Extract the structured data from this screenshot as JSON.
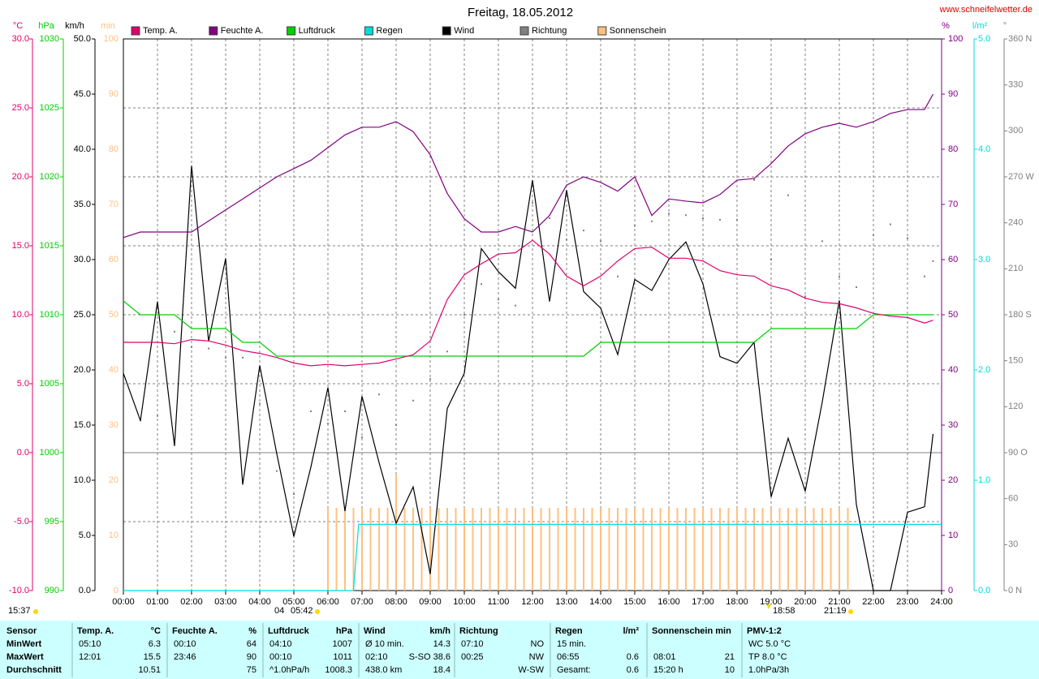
{
  "chart_data": {
    "type": "line",
    "title": "Freitag, 18.05.2012",
    "subtitle": "www.schneifelwetter.de",
    "grid": true,
    "annotations": [
      "15:37",
      "04",
      "05:42",
      "18:58",
      "21:19"
    ],
    "x": [
      0,
      0.5,
      1,
      1.5,
      2,
      2.5,
      3,
      3.5,
      4,
      4.5,
      5,
      5.5,
      6,
      6.5,
      7,
      7.5,
      8,
      8.5,
      9,
      9.5,
      10,
      10.5,
      11,
      11.5,
      12,
      12.5,
      13,
      13.5,
      14,
      14.5,
      15,
      15.5,
      16,
      16.5,
      17,
      17.5,
      18,
      18.5,
      19,
      19.5,
      20,
      20.5,
      21,
      21.5,
      22,
      22.5,
      23,
      23.5,
      23.75
    ],
    "xlim": [
      0,
      24
    ],
    "xticks": [
      {
        "value": 0,
        "label": "00:00"
      },
      {
        "value": 1,
        "label": "01:00"
      },
      {
        "value": 2,
        "label": "02:00"
      },
      {
        "value": 3,
        "label": "03:00"
      },
      {
        "value": 4,
        "label": "04:00"
      },
      {
        "value": 5,
        "label": "05:00"
      },
      {
        "value": 6,
        "label": "06:00"
      },
      {
        "value": 7,
        "label": "07:00"
      },
      {
        "value": 8,
        "label": "08:00"
      },
      {
        "value": 9,
        "label": "09:00"
      },
      {
        "value": 10,
        "label": "10:00"
      },
      {
        "value": 11,
        "label": "11:00"
      },
      {
        "value": 12,
        "label": "12:00"
      },
      {
        "value": 13,
        "label": "13:00"
      },
      {
        "value": 14,
        "label": "14:00"
      },
      {
        "value": 15,
        "label": "15:00"
      },
      {
        "value": 16,
        "label": "16:00"
      },
      {
        "value": 17,
        "label": "17:00"
      },
      {
        "value": 18,
        "label": "18:00"
      },
      {
        "value": 19,
        "label": "19:00"
      },
      {
        "value": 20,
        "label": "20:00"
      },
      {
        "value": 21,
        "label": "21:00"
      },
      {
        "value": 22,
        "label": "22:00"
      },
      {
        "value": 23,
        "label": "23:00"
      },
      {
        "value": 24,
        "label": "24:00"
      }
    ],
    "series": [
      {
        "name": "Temp. A.",
        "type": "line",
        "unit": "°C",
        "color": "#e0006c",
        "ylim": [
          -10,
          30
        ],
        "yticks": [
          {
            "value": -10,
            "label": "-10.0"
          },
          {
            "value": -5,
            "label": "-5.0"
          },
          {
            "value": 0,
            "label": "0.0"
          },
          {
            "value": 5,
            "label": "5.0"
          },
          {
            "value": 10,
            "label": "10.0"
          },
          {
            "value": 15,
            "label": "15.0"
          },
          {
            "value": 20,
            "label": "20.0"
          },
          {
            "value": 25,
            "label": "25.0"
          },
          {
            "value": 30,
            "label": "30.0"
          }
        ],
        "values": [
          8.0,
          8.0,
          8.0,
          7.9,
          8.2,
          8.1,
          7.8,
          7.4,
          7.2,
          6.9,
          6.5,
          6.3,
          6.4,
          6.3,
          6.4,
          6.5,
          6.8,
          7.1,
          8.1,
          11.1,
          12.9,
          13.7,
          14.4,
          14.5,
          15.4,
          14.4,
          12.8,
          12.1,
          12.8,
          13.9,
          14.8,
          14.9,
          14.1,
          14.1,
          13.9,
          13.2,
          12.9,
          12.8,
          12.1,
          11.8,
          11.2,
          10.9,
          10.8,
          10.5,
          10.1,
          9.9,
          9.8,
          9.4,
          9.6
        ]
      },
      {
        "name": "Feuchte A.",
        "type": "line",
        "unit": "%",
        "color": "#800080",
        "ylim": [
          0,
          100
        ],
        "yticks": [
          0,
          10,
          20,
          30,
          40,
          50,
          60,
          70,
          80,
          90,
          100
        ],
        "values": [
          64,
          65,
          65,
          65,
          65,
          67,
          69,
          71,
          73,
          75,
          76.5,
          78,
          80.3,
          82.6,
          84,
          84,
          85,
          83.2,
          79,
          72,
          67.4,
          65,
          65,
          66,
          65,
          68,
          73.5,
          75,
          74,
          72.4,
          75,
          68,
          71,
          70.6,
          70.3,
          71.8,
          74.4,
          74.7,
          77.4,
          80.6,
          82.8,
          84,
          84.7,
          84,
          85,
          86.5,
          87.2,
          87.2,
          90
        ]
      },
      {
        "name": "Luftdruck",
        "type": "line",
        "unit": "hPa",
        "color": "#00d000",
        "ylim": [
          990,
          1030
        ],
        "yticks": [
          990,
          995,
          1000,
          1005,
          1010,
          1015,
          1020,
          1025,
          1030
        ],
        "values": [
          1011,
          1010,
          1010,
          1010,
          1009,
          1009,
          1009,
          1008,
          1008,
          1007,
          1007,
          1007,
          1007,
          1007,
          1007,
          1007,
          1007,
          1007,
          1007,
          1007,
          1007,
          1007,
          1007,
          1007,
          1007,
          1007,
          1007,
          1007,
          1008,
          1008,
          1008,
          1008,
          1008,
          1008,
          1008,
          1008,
          1008,
          1008,
          1009,
          1009,
          1009,
          1009,
          1009,
          1009,
          1010,
          1010,
          1010,
          1010,
          1010
        ]
      },
      {
        "name": "Regen",
        "type": "line",
        "unit": "l/m²",
        "color": "#00dcdc",
        "ylim": [
          0,
          5
        ],
        "yticks": [
          {
            "value": 0,
            "label": "0.0"
          },
          {
            "value": 1,
            "label": "1.0"
          },
          {
            "value": 2,
            "label": "2.0"
          },
          {
            "value": 3,
            "label": "3.0"
          },
          {
            "value": 4,
            "label": "4.0"
          },
          {
            "value": 5,
            "label": "5.0"
          }
        ],
        "x": [
          0,
          6.75,
          6.9,
          24
        ],
        "values": [
          0,
          0,
          0.6,
          0.6
        ]
      },
      {
        "name": "Wind",
        "type": "line",
        "unit": "km/h",
        "color": "#000000",
        "ylim": [
          0,
          50
        ],
        "yticks": [
          {
            "value": 0,
            "label": "0.0"
          },
          {
            "value": 5,
            "label": "5.0"
          },
          {
            "value": 10,
            "label": "10.0"
          },
          {
            "value": 15,
            "label": "15.0"
          },
          {
            "value": 20,
            "label": "20.0"
          },
          {
            "value": 25,
            "label": "25.0"
          },
          {
            "value": 30,
            "label": "30.0"
          },
          {
            "value": 35,
            "label": "35.0"
          },
          {
            "value": 40,
            "label": "40.0"
          },
          {
            "value": 45,
            "label": "45.0"
          },
          {
            "value": 50,
            "label": "50.0"
          }
        ],
        "values": [
          19.7,
          15.4,
          26.2,
          13.1,
          38.5,
          22.6,
          30.1,
          9.6,
          20.4,
          12.4,
          4.9,
          11.2,
          18.4,
          7.2,
          17.6,
          11.6,
          6.1,
          9.4,
          1.5,
          16.5,
          19.7,
          31.0,
          28.9,
          27.4,
          37.2,
          26.2,
          36.3,
          27.1,
          25.6,
          21.4,
          28.2,
          27.2,
          30,
          31.6,
          27.8,
          21.2,
          20.6,
          22.5,
          8.5,
          13.8,
          9.0,
          17.1,
          26.3,
          7.8,
          0,
          0,
          7.1,
          7.6,
          14.2
        ]
      },
      {
        "name": "Richtung",
        "type": "scatter",
        "unit": "°",
        "color": "#808080",
        "ylim": [
          0,
          360
        ],
        "yticks": [
          {
            "value": 0,
            "label": "0 N"
          },
          30,
          60,
          {
            "value": 90,
            "label": "90 O"
          },
          120,
          150,
          {
            "value": 180,
            "label": "180 S"
          },
          210,
          240,
          {
            "value": 270,
            "label": "270 W"
          },
          300,
          330,
          {
            "value": 360,
            "label": "360 N"
          }
        ],
        "values": [
          305,
          111,
          114,
          169,
          159,
          158,
          152,
          152,
          122,
          78,
          63,
          117,
          109,
          117,
          100,
          128,
          108,
          124,
          138,
          156,
          180,
          200,
          190,
          186,
          253,
          243,
          229,
          235,
          228,
          205,
          238,
          241,
          246,
          245,
          243,
          242,
          242,
          268,
          216,
          258,
          192,
          228,
          205,
          198,
          232,
          239,
          230,
          205,
          215
        ]
      },
      {
        "name": "Sonnenschein",
        "type": "bar",
        "unit": "min",
        "color": "#ffc080",
        "ylim": [
          0,
          100
        ],
        "yticks": [
          0,
          10,
          20,
          30,
          40,
          50,
          60,
          70,
          80,
          90,
          100
        ],
        "x": [
          6,
          6.25,
          6.5,
          6.75,
          7,
          7.25,
          7.5,
          7.75,
          8,
          8.25,
          8.5,
          8.75,
          9,
          9.25,
          9.5,
          9.75,
          10,
          10.25,
          10.5,
          10.75,
          11,
          11.25,
          11.5,
          11.75,
          12,
          12.25,
          12.5,
          12.75,
          13,
          13.25,
          13.5,
          13.75,
          14,
          14.25,
          14.5,
          14.75,
          15,
          15.25,
          15.5,
          15.75,
          16,
          16.25,
          16.5,
          16.75,
          17,
          17.25,
          17.5,
          17.75,
          18,
          18.25,
          18.5,
          18.75,
          19,
          19.25,
          19.5,
          19.75,
          20,
          20.25,
          20.5,
          20.75,
          21,
          21.25
        ],
        "values": [
          15,
          15,
          15,
          15,
          15,
          15,
          15,
          15,
          21,
          15,
          15,
          15,
          15,
          15,
          15,
          15,
          15,
          15,
          15,
          15,
          15,
          15,
          15,
          15,
          15,
          15,
          15,
          15,
          15,
          15,
          15,
          15,
          15,
          15,
          15,
          15,
          15,
          15,
          15,
          15,
          15,
          15,
          15,
          15,
          15,
          15,
          15,
          15,
          15,
          15,
          15,
          15,
          15,
          15,
          15,
          15,
          15,
          15,
          15,
          15,
          15,
          15
        ]
      }
    ]
  },
  "table": {
    "columns": [
      {
        "title": "Sensor",
        "rows": [
          {
            "left": "MinWert"
          },
          {
            "left": "MaxWert"
          },
          {
            "left": "Durchschnitt"
          }
        ]
      },
      {
        "title": "Temp. A.",
        "unit": "°C",
        "rows": [
          {
            "left": "05:10",
            "right": "6.3"
          },
          {
            "left": "12:01",
            "right": "15.5"
          },
          {
            "right": "10.51"
          }
        ]
      },
      {
        "title": "Feuchte A.",
        "unit": "%",
        "rows": [
          {
            "left": "00:10",
            "right": "64"
          },
          {
            "left": "23:46",
            "right": "90"
          },
          {
            "right": "75"
          }
        ]
      },
      {
        "title": "Luftdruck",
        "unit": "hPa",
        "rows": [
          {
            "left": "04:10",
            "right": "1007"
          },
          {
            "left": "00:10",
            "right": "1011"
          },
          {
            "left": "^1.0hPa/h",
            "right": "1008.3"
          }
        ]
      },
      {
        "title": "Wind",
        "unit": "km/h",
        "rows": [
          {
            "left": "Ø 10 min.",
            "right": "14.3"
          },
          {
            "left": "02:10",
            "right": "S-SO 38.6"
          },
          {
            "left": "438.0 km",
            "right": "18.4"
          }
        ]
      },
      {
        "title": "Richtung",
        "rows": [
          {
            "left": "07:10",
            "right": "NO"
          },
          {
            "left": "00:25",
            "right": "NW"
          },
          {
            "right": "W-SW"
          }
        ]
      },
      {
        "title": "Regen",
        "unit": "l/m²",
        "rows": [
          {
            "left": "15 min."
          },
          {
            "left": "06:55",
            "right": "0.6"
          },
          {
            "left": "Gesamt:",
            "right": "0.6"
          }
        ]
      },
      {
        "title": "Sonnenschein min",
        "rows": [
          {},
          {
            "left": "08:01",
            "right": "21"
          },
          {
            "left": "15:20 h",
            "right": "10"
          }
        ]
      },
      {
        "title": "PMV-1:2",
        "rows": [
          {
            "left": "WC 5.0 °C"
          },
          {
            "left": "TP 8.0 °C"
          },
          {
            "left": "1.0hPa/3h"
          }
        ]
      }
    ]
  }
}
